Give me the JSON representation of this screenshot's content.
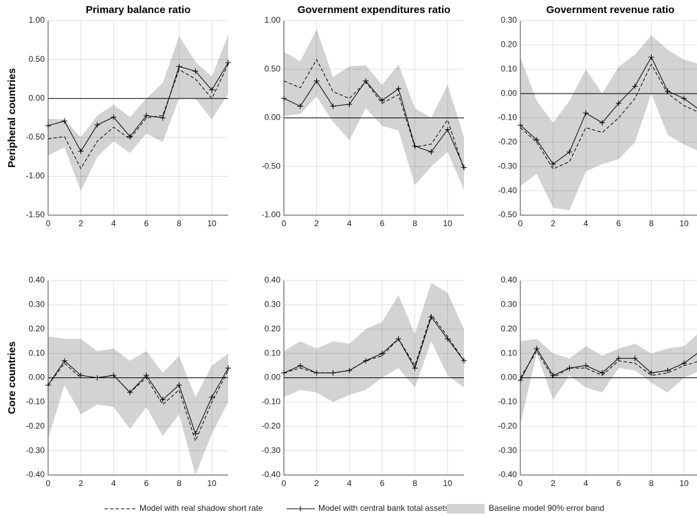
{
  "chart_data": [
    {
      "type": "line",
      "title": "Primary balance ratio",
      "row_label": "Peripheral countries",
      "x": [
        0,
        1,
        2,
        3,
        4,
        5,
        6,
        7,
        8,
        9,
        10,
        11
      ],
      "xlim": [
        0,
        11
      ],
      "xticks": [
        0,
        2,
        4,
        6,
        8,
        10
      ],
      "ylim": [
        -1.5,
        1
      ],
      "yticks": [
        {
          "value": -1.5,
          "label": "-1.50"
        },
        {
          "value": -1,
          "label": "-1.00"
        },
        {
          "value": -0.5,
          "label": "-0.50"
        },
        {
          "value": 0,
          "label": "0.00"
        },
        {
          "value": 0.5,
          "label": "0.50"
        },
        {
          "value": 1,
          "label": "1.00"
        }
      ],
      "grid": true,
      "zero_line": true,
      "band": {
        "name": "Baseline model 90% error band",
        "color": "#d3d3d3",
        "upper": [
          -0.26,
          -0.27,
          -0.5,
          -0.22,
          -0.08,
          -0.24,
          0,
          0.2,
          0.8,
          0.47,
          0.28,
          0.82
        ],
        "lower": [
          -0.73,
          -0.63,
          -1.19,
          -0.75,
          -0.55,
          -0.7,
          -0.45,
          -0.56,
          0,
          0,
          -0.27,
          0.06
        ]
      },
      "series": [
        {
          "name": "Model with real shadow short rate",
          "color": "#000000",
          "dashed": true,
          "values": [
            -0.52,
            -0.49,
            -0.9,
            -0.55,
            -0.37,
            -0.52,
            -0.25,
            -0.22,
            0.37,
            0.25,
            0,
            0.44
          ]
        },
        {
          "name": "Model with central bank total assets",
          "color": "#000000",
          "marker": "+",
          "values": [
            -0.35,
            -0.29,
            -0.68,
            -0.34,
            -0.24,
            -0.49,
            -0.22,
            -0.25,
            0.41,
            0.35,
            0.11,
            0.46
          ]
        }
      ]
    },
    {
      "type": "line",
      "title": "Government expenditures ratio",
      "x": [
        0,
        1,
        2,
        3,
        4,
        5,
        6,
        7,
        8,
        9,
        10,
        11
      ],
      "xlim": [
        0,
        11
      ],
      "xticks": [
        0,
        2,
        4,
        6,
        8,
        10
      ],
      "ylim": [
        -1,
        1
      ],
      "yticks": [
        {
          "value": -1,
          "label": "-1.00"
        },
        {
          "value": -0.5,
          "label": "-0.50"
        },
        {
          "value": 0,
          "label": "0.00"
        },
        {
          "value": 0.5,
          "label": "0.50"
        },
        {
          "value": 1,
          "label": "1.00"
        }
      ],
      "grid": true,
      "zero_line": true,
      "band": {
        "name": "Baseline model 90% error band",
        "color": "#d3d3d3",
        "upper": [
          0.68,
          0.58,
          0.91,
          0.42,
          0.53,
          0.54,
          0.34,
          0.55,
          0.1,
          0,
          0.34,
          -0.2
        ],
        "lower": [
          0.02,
          0.04,
          0.22,
          -0.04,
          -0.23,
          0.1,
          -0.08,
          -0.13,
          -0.69,
          -0.5,
          -0.35,
          -0.74
        ]
      },
      "series": [
        {
          "name": "Model with real shadow short rate",
          "color": "#000000",
          "dashed": true,
          "values": [
            0.38,
            0.31,
            0.6,
            0.27,
            0.2,
            0.37,
            0.15,
            0.24,
            -0.3,
            -0.27,
            -0.02,
            -0.53
          ]
        },
        {
          "name": "Model with central bank total assets",
          "color": "#000000",
          "marker": "+",
          "values": [
            0.2,
            0.12,
            0.38,
            0.12,
            0.14,
            0.38,
            0.18,
            0.3,
            -0.29,
            -0.35,
            -0.12,
            -0.51
          ]
        }
      ]
    },
    {
      "type": "line",
      "title": "Government revenue ratio",
      "x": [
        0,
        1,
        2,
        3,
        4,
        5,
        6,
        7,
        8,
        9,
        10,
        11
      ],
      "xlim": [
        0,
        11
      ],
      "xticks": [
        0,
        2,
        4,
        6,
        8,
        10
      ],
      "ylim": [
        -0.5,
        0.3
      ],
      "yticks": [
        {
          "value": -0.5,
          "label": "-0.50"
        },
        {
          "value": -0.4,
          "label": "-0.40"
        },
        {
          "value": -0.3,
          "label": "-0.30"
        },
        {
          "value": -0.2,
          "label": "-0.20"
        },
        {
          "value": -0.1,
          "label": "-0.10"
        },
        {
          "value": 0,
          "label": "0.00"
        },
        {
          "value": 0.1,
          "label": "0.10"
        },
        {
          "value": 0.2,
          "label": "0.20"
        },
        {
          "value": 0.3,
          "label": "0.30"
        }
      ],
      "grid": true,
      "zero_line": true,
      "band": {
        "name": "Baseline model 90% error band",
        "color": "#d3d3d3",
        "upper": [
          0.15,
          -0.03,
          -0.12,
          -0.03,
          0.1,
          0,
          0.11,
          0.16,
          0.24,
          0.18,
          0.14,
          0.12
        ],
        "lower": [
          -0.38,
          -0.33,
          -0.47,
          -0.48,
          -0.32,
          -0.29,
          -0.27,
          -0.2,
          0,
          -0.17,
          -0.21,
          -0.24
        ]
      },
      "series": [
        {
          "name": "Model with real shadow short rate",
          "color": "#000000",
          "dashed": true,
          "values": [
            -0.14,
            -0.2,
            -0.31,
            -0.28,
            -0.14,
            -0.16,
            -0.1,
            -0.02,
            0.12,
            0,
            -0.05,
            -0.08
          ]
        },
        {
          "name": "Model with central bank total assets",
          "color": "#000000",
          "marker": "+",
          "values": [
            -0.13,
            -0.19,
            -0.29,
            -0.24,
            -0.08,
            -0.12,
            -0.04,
            0.03,
            0.15,
            0.01,
            -0.02,
            -0.07
          ]
        }
      ]
    },
    {
      "type": "line",
      "row_label": "Core countries",
      "x": [
        0,
        1,
        2,
        3,
        4,
        5,
        6,
        7,
        8,
        9,
        10,
        11
      ],
      "xlim": [
        0,
        11
      ],
      "xticks": [
        0,
        2,
        4,
        6,
        8,
        10
      ],
      "ylim": [
        -0.4,
        0.4
      ],
      "yticks": [
        {
          "value": -0.4,
          "label": "-0.40"
        },
        {
          "value": -0.3,
          "label": "-0.30"
        },
        {
          "value": -0.2,
          "label": "-0.20"
        },
        {
          "value": -0.1,
          "label": "-0.10"
        },
        {
          "value": 0,
          "label": "0.00"
        },
        {
          "value": 0.1,
          "label": "0.10"
        },
        {
          "value": 0.2,
          "label": "0.20"
        },
        {
          "value": 0.3,
          "label": "0.30"
        },
        {
          "value": 0.4,
          "label": "0.40"
        }
      ],
      "grid": true,
      "zero_line": true,
      "band": {
        "name": "Baseline model 90% error band",
        "color": "#d3d3d3",
        "upper": [
          0.17,
          0.16,
          0.16,
          0.11,
          0.12,
          0.07,
          0.11,
          0.02,
          0.09,
          -0.08,
          0.05,
          0.1
        ],
        "lower": [
          -0.25,
          -0.03,
          -0.15,
          -0.11,
          -0.12,
          -0.21,
          -0.12,
          -0.24,
          -0.15,
          -0.4,
          -0.23,
          -0.1
        ]
      },
      "series": [
        {
          "name": "Model with real shadow short rate",
          "color": "#000000",
          "dashed": true,
          "values": [
            -0.03,
            0.06,
            0,
            0,
            0.01,
            -0.06,
            0,
            -0.11,
            -0.05,
            -0.26,
            -0.1,
            0.03
          ]
        },
        {
          "name": "Model with central bank total assets",
          "color": "#000000",
          "marker": "+",
          "values": [
            -0.03,
            0.07,
            0.01,
            0,
            0.01,
            -0.06,
            0.01,
            -0.09,
            -0.03,
            -0.23,
            -0.08,
            0.04
          ]
        }
      ]
    },
    {
      "type": "line",
      "x": [
        0,
        1,
        2,
        3,
        4,
        5,
        6,
        7,
        8,
        9,
        10,
        11
      ],
      "xlim": [
        0,
        11
      ],
      "xticks": [
        0,
        2,
        4,
        6,
        8,
        10
      ],
      "ylim": [
        -0.4,
        0.4
      ],
      "yticks": [
        {
          "value": -0.4,
          "label": "-0.40"
        },
        {
          "value": -0.3,
          "label": "-0.30"
        },
        {
          "value": -0.2,
          "label": "-0.20"
        },
        {
          "value": -0.1,
          "label": "-0.10"
        },
        {
          "value": 0,
          "label": "0.00"
        },
        {
          "value": 0.1,
          "label": "0.10"
        },
        {
          "value": 0.2,
          "label": "0.20"
        },
        {
          "value": 0.3,
          "label": "0.30"
        },
        {
          "value": 0.4,
          "label": "0.40"
        }
      ],
      "grid": true,
      "zero_line": true,
      "band": {
        "name": "Baseline model 90% error band",
        "color": "#d3d3d3",
        "upper": [
          0.11,
          0.15,
          0.12,
          0.15,
          0.14,
          0.2,
          0.23,
          0.34,
          0.18,
          0.39,
          0.35,
          0.2
        ],
        "lower": [
          -0.08,
          -0.05,
          -0.06,
          -0.1,
          -0.07,
          -0.05,
          0,
          0.04,
          -0.04,
          0.15,
          0.01,
          -0.04
        ]
      },
      "series": [
        {
          "name": "Model with real shadow short rate",
          "color": "#000000",
          "dashed": true,
          "values": [
            0.02,
            0.04,
            0.02,
            0.02,
            0.03,
            0.07,
            0.09,
            0.16,
            0.05,
            0.26,
            0.17,
            0.07
          ]
        },
        {
          "name": "Model with central bank total assets",
          "color": "#000000",
          "marker": "+",
          "values": [
            0.02,
            0.05,
            0.02,
            0.02,
            0.03,
            0.07,
            0.1,
            0.16,
            0.04,
            0.25,
            0.16,
            0.07
          ]
        }
      ]
    },
    {
      "type": "line",
      "x": [
        0,
        1,
        2,
        3,
        4,
        5,
        6,
        7,
        8,
        9,
        10,
        11
      ],
      "xlim": [
        0,
        11
      ],
      "xticks": [
        0,
        2,
        4,
        6,
        8,
        10
      ],
      "ylim": [
        -0.4,
        0.4
      ],
      "yticks": [
        {
          "value": -0.4,
          "label": "-0.40"
        },
        {
          "value": -0.3,
          "label": "-0.30"
        },
        {
          "value": -0.2,
          "label": "-0.20"
        },
        {
          "value": -0.1,
          "label": "-0.10"
        },
        {
          "value": 0,
          "label": "0.00"
        },
        {
          "value": 0.1,
          "label": "0.10"
        },
        {
          "value": 0.2,
          "label": "0.20"
        },
        {
          "value": 0.3,
          "label": "0.30"
        },
        {
          "value": 0.4,
          "label": "0.40"
        }
      ],
      "grid": true,
      "zero_line": true,
      "band": {
        "name": "Baseline model 90% error band",
        "color": "#d3d3d3",
        "upper": [
          0.15,
          0.16,
          0.1,
          0.08,
          0.13,
          0.09,
          0.12,
          0.14,
          0.1,
          0.12,
          0.13,
          0.19
        ],
        "lower": [
          -0.19,
          0.1,
          -0.09,
          0.01,
          -0.04,
          -0.06,
          0.04,
          0.03,
          -0.02,
          -0.06,
          0,
          0.03
        ]
      },
      "series": [
        {
          "name": "Model with real shadow short rate",
          "color": "#000000",
          "dashed": true,
          "values": [
            0,
            0.11,
            0,
            0.04,
            0.04,
            0.01,
            0.07,
            0.06,
            0.01,
            0.02,
            0.05,
            0.07
          ]
        },
        {
          "name": "Model with central bank total assets",
          "color": "#000000",
          "marker": "+",
          "values": [
            -0.01,
            0.12,
            0.01,
            0.04,
            0.05,
            0.02,
            0.08,
            0.08,
            0.02,
            0.03,
            0.06,
            0.11
          ]
        }
      ]
    }
  ]
}
